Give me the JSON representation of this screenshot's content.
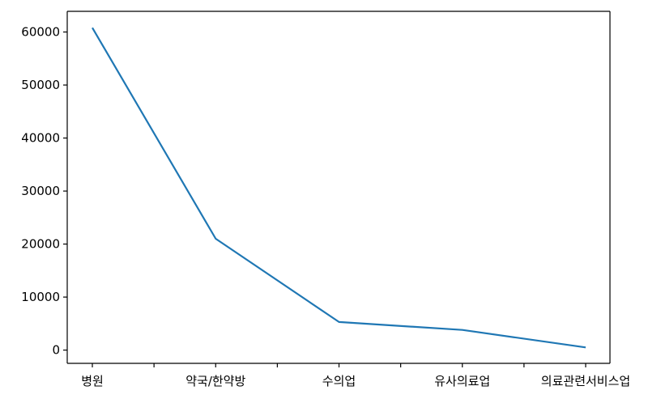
{
  "chart_data": {
    "type": "line",
    "title": "",
    "xlabel": "",
    "ylabel": "",
    "categories": [
      "병원",
      "약국/한약방",
      "수의업",
      "유사의료업",
      "의료관련서비스업"
    ],
    "series": [
      {
        "values": [
          60800,
          21000,
          5300,
          3800,
          500
        ],
        "color": "#1f77b4"
      }
    ],
    "ylim": [
      -2500,
      63900
    ],
    "y_ticks": [
      0,
      10000,
      20000,
      30000,
      40000,
      50000,
      60000
    ],
    "y_tick_labels": [
      "0",
      "10000",
      "20000",
      "30000",
      "40000",
      "50000",
      "60000"
    ],
    "grid": false,
    "legend": "none"
  }
}
